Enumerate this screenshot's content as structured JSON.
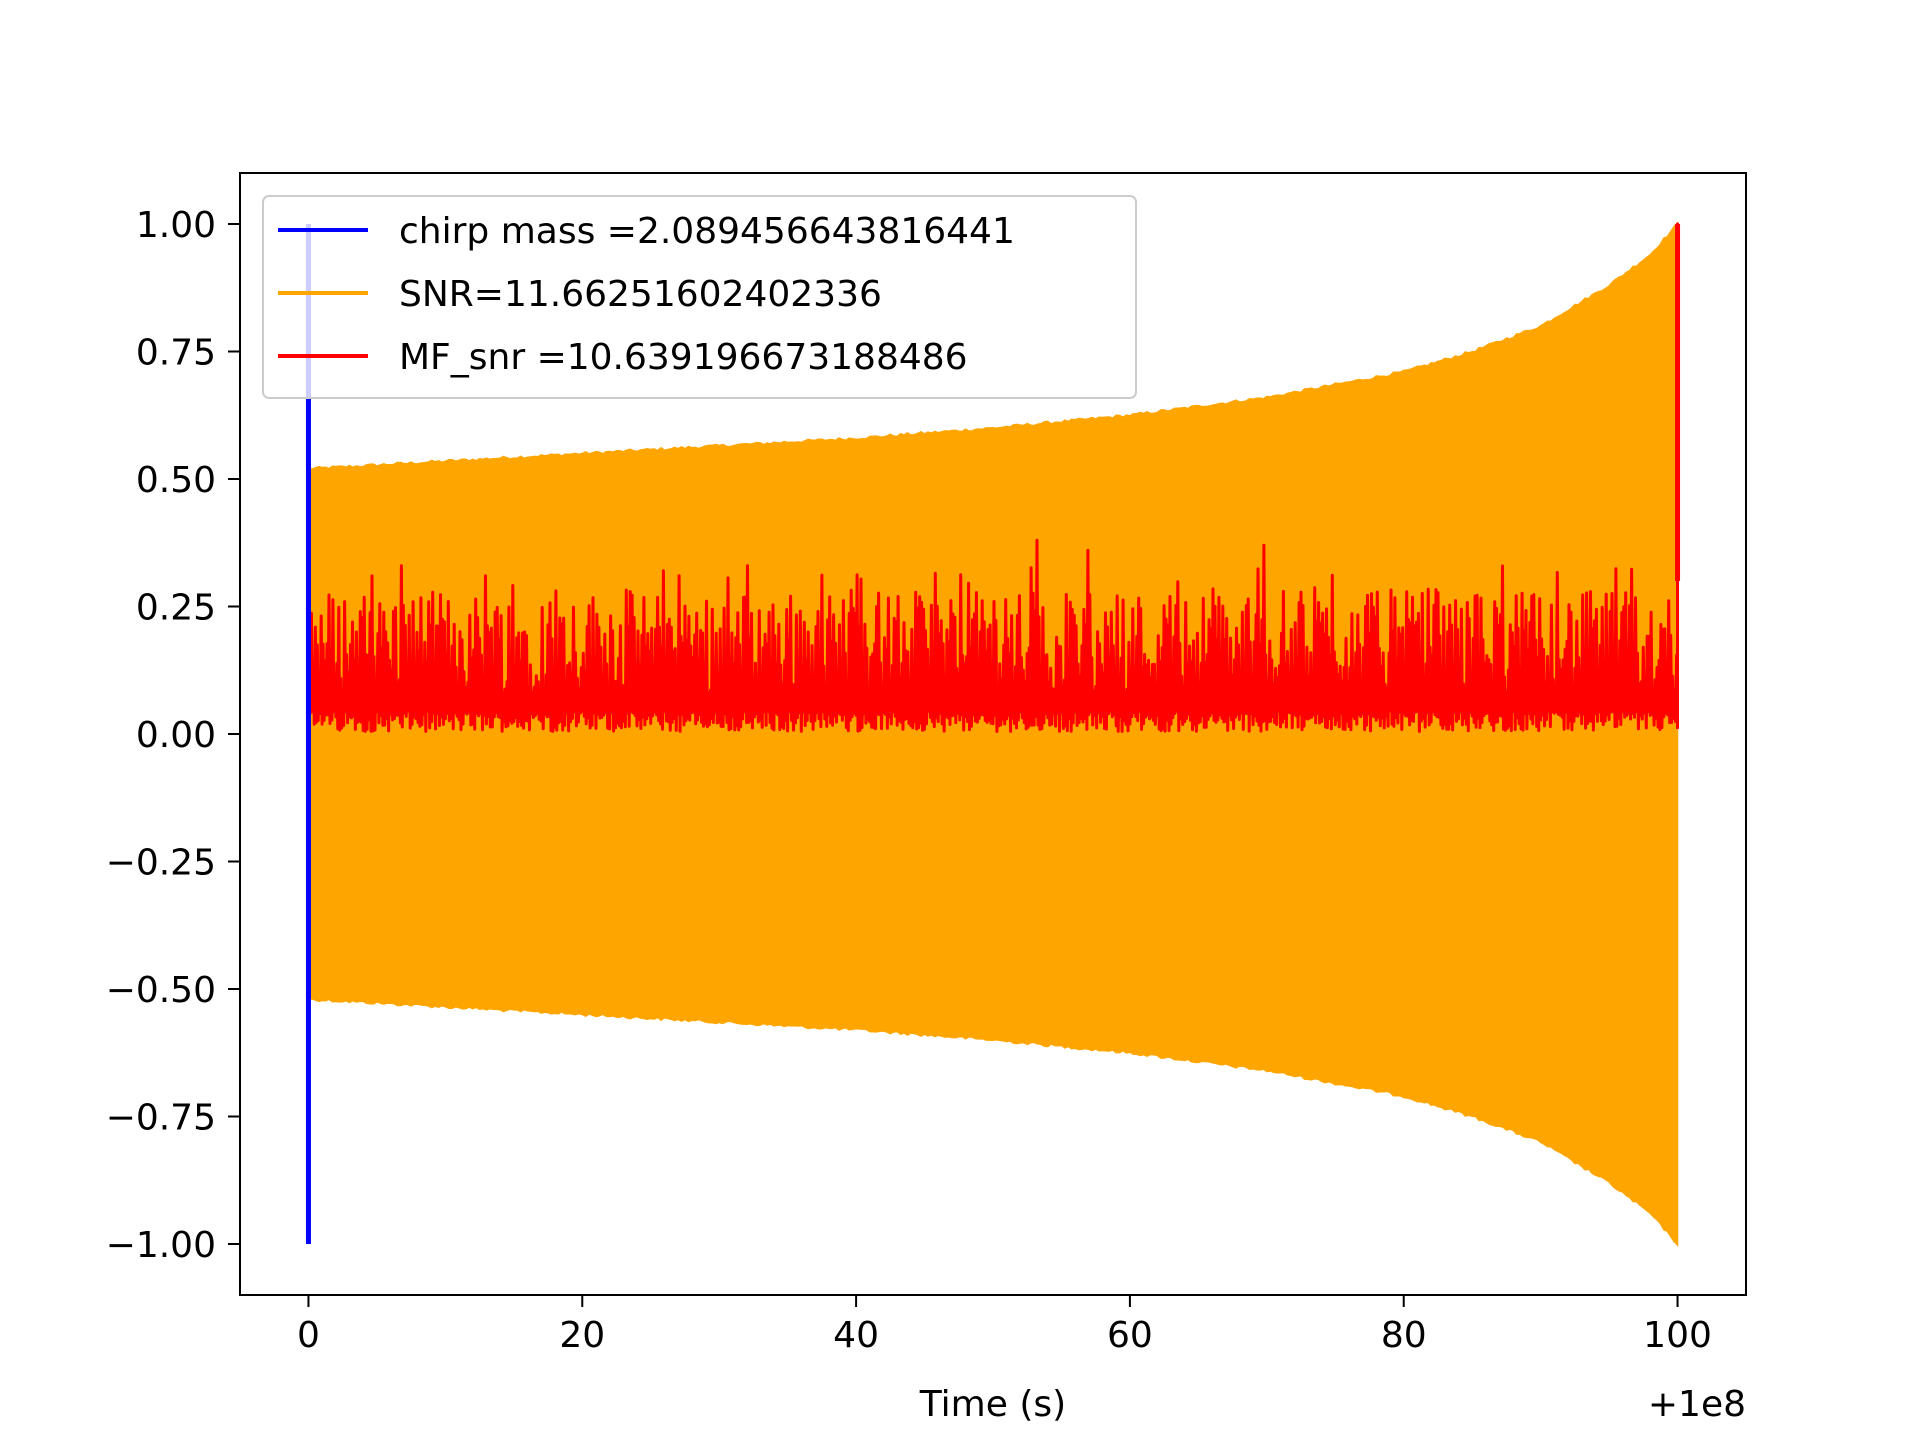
{
  "chart_data": {
    "type": "line",
    "title": "",
    "xlabel": "Time (s)",
    "ylabel": "",
    "x_offset_label": "+1e8",
    "xlim": [
      -5,
      105
    ],
    "ylim": [
      -1.1,
      1.1
    ],
    "xticks": [
      0,
      20,
      40,
      60,
      80,
      100
    ],
    "xtick_labels": [
      "0",
      "20",
      "40",
      "60",
      "80",
      "100"
    ],
    "yticks": [
      1.0,
      0.75,
      0.5,
      0.25,
      0.0,
      -0.25,
      -0.5,
      -0.75,
      -1.0
    ],
    "ytick_labels": [
      "1.00",
      "0.75",
      "0.50",
      "0.25",
      "0.00",
      "−0.25",
      "−0.50",
      "−0.75",
      "−1.00"
    ],
    "grid": false,
    "legend_position": "top-left",
    "series": [
      {
        "name": "chirp mass =2.089456643816441",
        "color": "#0000ff",
        "kind": "spike",
        "x": [
          0,
          0
        ],
        "y": [
          -1.0,
          1.0
        ]
      },
      {
        "name": "SNR=11.66251602402336",
        "color": "#ffa500",
        "kind": "envelope",
        "x": [
          0,
          10,
          20,
          30,
          40,
          50,
          60,
          70,
          80,
          85,
          90,
          95,
          98,
          100
        ],
        "upper": [
          0.52,
          0.535,
          0.55,
          0.565,
          0.58,
          0.6,
          0.625,
          0.66,
          0.71,
          0.75,
          0.8,
          0.88,
          0.94,
          1.0
        ],
        "lower": [
          -0.52,
          -0.535,
          -0.55,
          -0.565,
          -0.58,
          -0.6,
          -0.625,
          -0.66,
          -0.71,
          -0.75,
          -0.8,
          -0.88,
          -0.94,
          -1.0
        ]
      },
      {
        "name": "MF_snr =10.639196673188486",
        "color": "#ff0000",
        "kind": "noise",
        "x_range": [
          0,
          100
        ],
        "baseline": 0.0,
        "typical_max": 0.28,
        "peak_x": 100,
        "peak_y": 1.0,
        "spikes": [
          {
            "x": 4.3,
            "y": 0.37
          },
          {
            "x": 6.8,
            "y": 0.33
          },
          {
            "x": 12.9,
            "y": 0.31
          },
          {
            "x": 25.9,
            "y": 0.32
          },
          {
            "x": 32.1,
            "y": 0.33
          },
          {
            "x": 46.3,
            "y": 0.39
          },
          {
            "x": 53.2,
            "y": 0.38
          },
          {
            "x": 56.9,
            "y": 0.36
          },
          {
            "x": 65.4,
            "y": 0.33
          },
          {
            "x": 69.8,
            "y": 0.37
          },
          {
            "x": 93.6,
            "y": 0.32
          }
        ]
      }
    ]
  }
}
